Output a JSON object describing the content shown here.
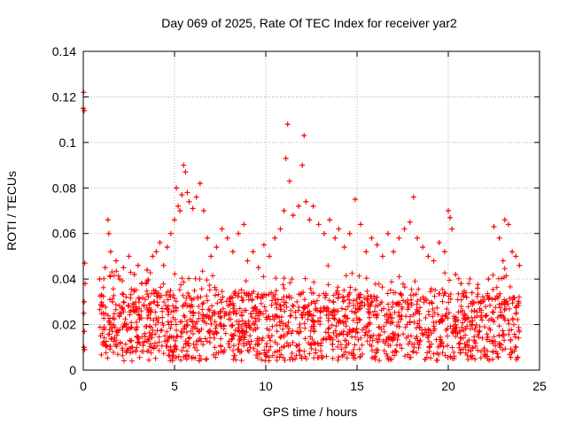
{
  "chart_data": {
    "type": "scatter",
    "title": "Day 069 of 2025, Rate Of TEC Index for receiver yar2",
    "xlabel": "GPS time / hours",
    "ylabel": "ROTI / TECUs",
    "xlim": [
      0,
      25
    ],
    "ylim": [
      0,
      0.14
    ],
    "xticks": [
      0,
      5,
      10,
      15,
      20,
      25
    ],
    "xtick_labels": [
      "0",
      "5",
      "10",
      "15",
      "20",
      "25"
    ],
    "yticks": [
      0,
      0.02,
      0.04,
      0.06,
      0.08,
      0.1,
      0.12,
      0.14
    ],
    "ytick_labels": [
      "0",
      "0.02",
      "0.04",
      "0.06",
      "0.08",
      "0.1",
      "0.12",
      "0.14"
    ],
    "grid": true,
    "marker": "+",
    "marker_color": "#ff0000",
    "series": [
      {
        "name": "ROTI",
        "color": "#ff0000",
        "x": [
          0.0,
          0.02,
          0.05,
          0.08,
          0.1,
          0.03,
          0.06,
          0.04,
          0.07,
          0.05,
          0.9,
          1.0,
          1.1,
          1.2,
          1.35,
          1.4,
          1.5,
          1.6,
          1.8,
          2.0,
          2.2,
          2.5,
          2.8,
          3.0,
          3.2,
          3.5,
          3.8,
          4.0,
          4.2,
          4.4,
          4.6,
          4.8,
          5.0,
          5.1,
          5.2,
          5.3,
          5.4,
          5.5,
          5.6,
          5.7,
          5.8,
          6.0,
          6.2,
          6.4,
          6.6,
          6.8,
          7.0,
          7.3,
          7.6,
          7.9,
          8.2,
          8.5,
          8.8,
          9.0,
          9.3,
          9.6,
          9.9,
          10.2,
          10.5,
          10.8,
          11.0,
          11.1,
          11.2,
          11.3,
          11.5,
          11.8,
          12.0,
          12.1,
          12.2,
          12.4,
          12.6,
          12.9,
          13.2,
          13.5,
          13.8,
          14.0,
          14.3,
          14.6,
          14.9,
          15.2,
          15.5,
          15.8,
          16.1,
          16.4,
          16.7,
          17.0,
          17.3,
          17.6,
          17.9,
          18.1,
          18.3,
          18.6,
          18.9,
          19.2,
          19.5,
          19.8,
          20.0,
          20.1,
          20.2,
          20.4,
          20.7,
          21.0,
          21.3,
          21.6,
          21.9,
          22.2,
          22.5,
          22.8,
          23.0,
          23.1,
          23.3,
          23.5,
          23.7,
          23.9
        ],
        "y": [
          0.115,
          0.122,
          0.114,
          0.047,
          0.038,
          0.025,
          0.017,
          0.01,
          0.009,
          0.03,
          0.04,
          0.033,
          0.025,
          0.045,
          0.066,
          0.06,
          0.052,
          0.03,
          0.048,
          0.04,
          0.045,
          0.05,
          0.042,
          0.046,
          0.038,
          0.044,
          0.05,
          0.052,
          0.056,
          0.046,
          0.054,
          0.06,
          0.066,
          0.08,
          0.072,
          0.07,
          0.077,
          0.09,
          0.087,
          0.078,
          0.074,
          0.071,
          0.076,
          0.082,
          0.07,
          0.058,
          0.05,
          0.054,
          0.062,
          0.058,
          0.052,
          0.06,
          0.064,
          0.048,
          0.052,
          0.045,
          0.055,
          0.05,
          0.058,
          0.062,
          0.07,
          0.093,
          0.108,
          0.083,
          0.068,
          0.072,
          0.09,
          0.103,
          0.074,
          0.066,
          0.072,
          0.064,
          0.06,
          0.066,
          0.058,
          0.062,
          0.054,
          0.06,
          0.075,
          0.064,
          0.052,
          0.058,
          0.055,
          0.05,
          0.06,
          0.052,
          0.058,
          0.062,
          0.065,
          0.076,
          0.058,
          0.054,
          0.05,
          0.048,
          0.056,
          0.052,
          0.07,
          0.067,
          0.062,
          0.042,
          0.038,
          0.032,
          0.034,
          0.036,
          0.03,
          0.04,
          0.063,
          0.058,
          0.048,
          0.066,
          0.064,
          0.052,
          0.05,
          0.046
        ]
      }
    ]
  }
}
